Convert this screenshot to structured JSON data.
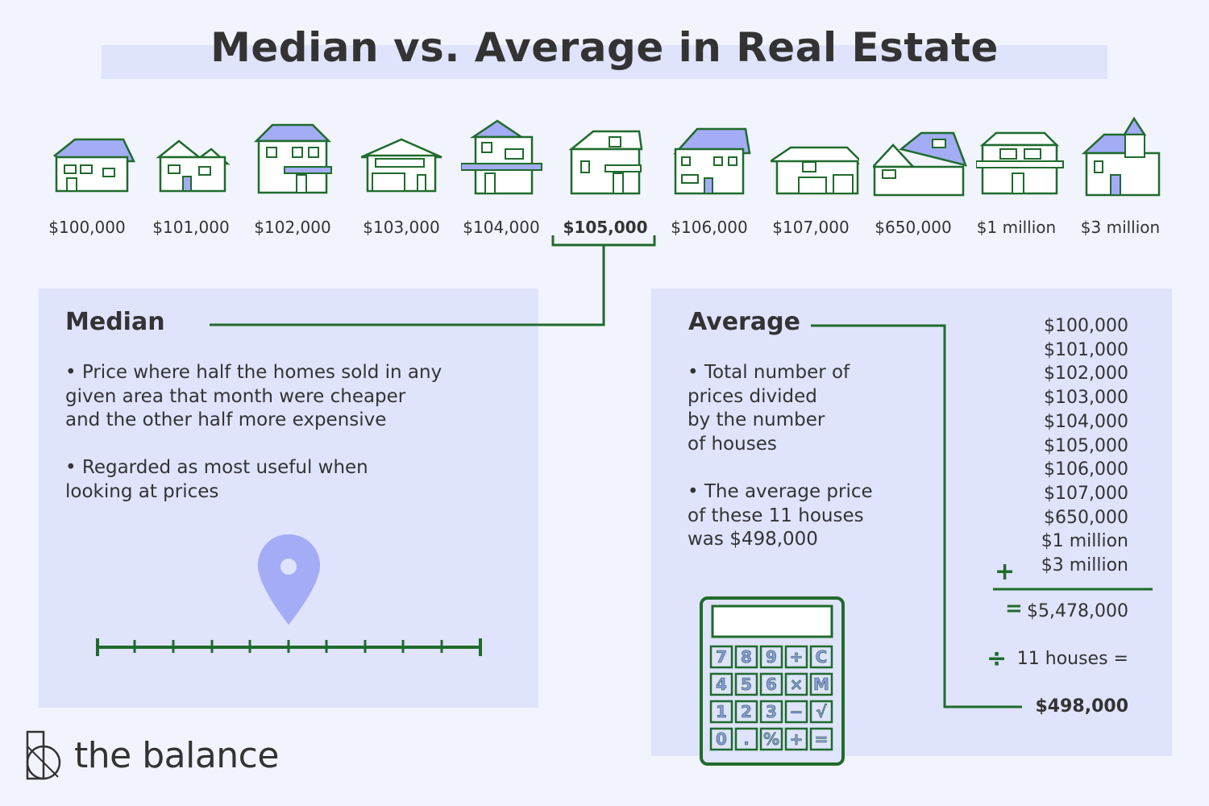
{
  "title": "Median vs. Average in Real Estate",
  "houses": [
    {
      "price": "$100,000"
    },
    {
      "price": "$101,000"
    },
    {
      "price": "$102,000"
    },
    {
      "price": "$103,000"
    },
    {
      "price": "$104,000"
    },
    {
      "price": "$105,000",
      "highlight": true
    },
    {
      "price": "$106,000"
    },
    {
      "price": "$107,000"
    },
    {
      "price": "$650,000"
    },
    {
      "price": "$1 million"
    },
    {
      "price": "$3 million"
    }
  ],
  "median": {
    "heading": "Median",
    "bullets": [
      "• Price where half the homes sold in any\n   given area that month were cheaper\n   and the other half more expensive",
      "• Regarded as most useful when\n   looking at prices"
    ],
    "marker_icon": "location-pin-icon"
  },
  "average": {
    "heading": "Average",
    "bullets": [
      "• Total number of\n   prices divided\n   by the number\n   of houses",
      "• The average price\n   of these 11 houses\n   was $498,000"
    ],
    "sum_items": [
      "$100,000",
      "$101,000",
      "$102,000",
      "$103,000",
      "$104,000",
      "$105,000",
      "$106,000",
      "$107,000",
      "$650,000",
      "$1 million",
      "$3 million"
    ],
    "plus": "+",
    "equals": "=",
    "total": "$5,478,000",
    "divide": "÷",
    "divide_text": "11 houses =",
    "result": "$498,000",
    "calculator_keys": [
      "7",
      "8",
      "9",
      "÷",
      "C",
      "4",
      "5",
      "6",
      "×",
      "M",
      "1",
      "2",
      "3",
      "−",
      "√",
      "0",
      ".",
      "%",
      "+",
      "="
    ]
  },
  "logo": {
    "text": "the balance"
  },
  "colors": {
    "accent": "#1f6b2c",
    "panel": "#dfe3fb",
    "background": "#f1f3fd",
    "roof": "#a3acf5",
    "pin": "#a3acf5"
  }
}
